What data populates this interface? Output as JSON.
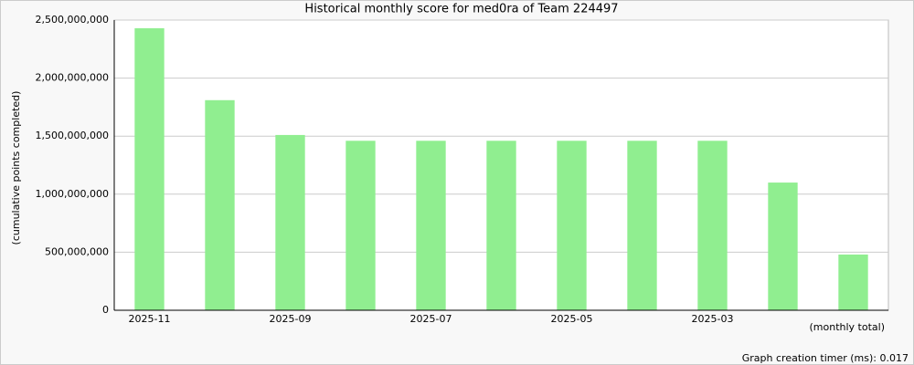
{
  "chart_data": {
    "type": "bar",
    "title": "Historical monthly score for med0ra of Team 224497",
    "y_label": "(cumulative points completed)",
    "x_label": "(monthly total)",
    "footer": "Graph creation timer (ms): 0.017",
    "categories": [
      "2025-11",
      null,
      "2025-09",
      null,
      "2025-07",
      null,
      "2025-05",
      null,
      "2025-03",
      null,
      null
    ],
    "values": [
      2430000000,
      1810000000,
      1510000000,
      1460000000,
      1460000000,
      1460000000,
      1460000000,
      1460000000,
      1460000000,
      1100000000,
      480000000
    ],
    "color": "#90ee90",
    "ylim": [
      0,
      2500000000
    ],
    "yticks": [
      0,
      {
        "value": 500000000,
        "label": "500,000,000"
      },
      {
        "value": 1000000000,
        "label": "1,000,000,000"
      },
      {
        "value": 1500000000,
        "label": "1,500,000,000"
      },
      {
        "value": 2000000000,
        "label": "2,000,000,000"
      },
      {
        "value": 2500000000,
        "label": "2,500,000,000"
      }
    ],
    "grid": true
  }
}
